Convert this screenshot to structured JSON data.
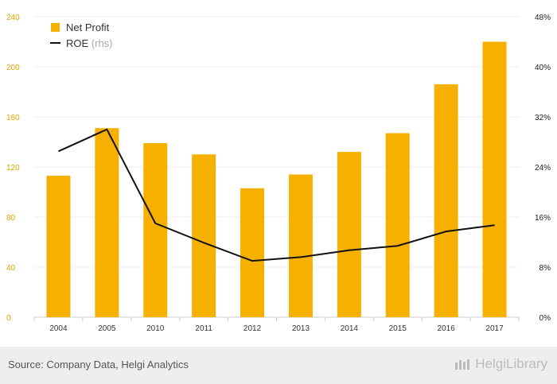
{
  "chart_data": {
    "type": "bar",
    "categories": [
      "2004",
      "2005",
      "2010",
      "2011",
      "2012",
      "2013",
      "2014",
      "2015",
      "2016",
      "2017"
    ],
    "series": [
      {
        "name": "Net Profit",
        "type": "bar",
        "axis": "left",
        "color": "#f5b000",
        "values": [
          113,
          151,
          139,
          130,
          103,
          114,
          132,
          147,
          186,
          220
        ]
      },
      {
        "name": "ROE",
        "type": "line",
        "axis": "right",
        "color": "#111111",
        "values": [
          26.5,
          30.0,
          15.0,
          11.9,
          9.0,
          9.6,
          10.7,
          11.4,
          13.7,
          14.7
        ]
      }
    ],
    "legend": [
      {
        "label": "Net Profit",
        "suffix": ""
      },
      {
        "label": "ROE",
        "suffix": "(rhs)"
      }
    ],
    "y_left": {
      "ylim": [
        0,
        240
      ],
      "ticks": [
        "0",
        "40",
        "80",
        "120",
        "160",
        "200",
        "240"
      ],
      "color": "#e0a400"
    },
    "y_right": {
      "ylim": [
        0,
        48
      ],
      "ticks": [
        "0%",
        "8%",
        "16%",
        "24%",
        "32%",
        "40%",
        "48%"
      ]
    }
  },
  "footer": {
    "source": "Source: Company Data, Helgi Analytics",
    "logo_text": "HelgiLibrary"
  }
}
